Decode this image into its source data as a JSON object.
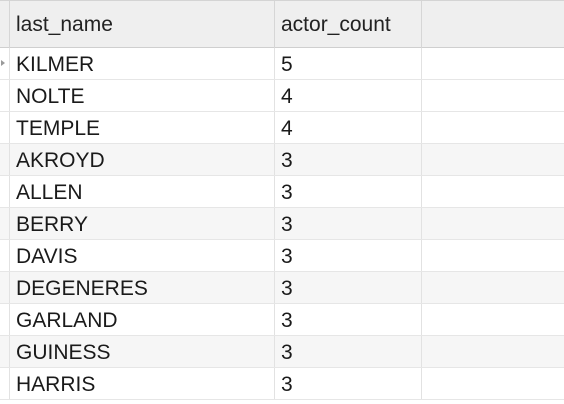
{
  "columns": {
    "last_name": "last_name",
    "actor_count": "actor_count"
  },
  "rows": [
    {
      "last_name": "KILMER",
      "actor_count": "5"
    },
    {
      "last_name": "NOLTE",
      "actor_count": "4"
    },
    {
      "last_name": "TEMPLE",
      "actor_count": "4"
    },
    {
      "last_name": "AKROYD",
      "actor_count": "3"
    },
    {
      "last_name": "ALLEN",
      "actor_count": "3"
    },
    {
      "last_name": "BERRY",
      "actor_count": "3"
    },
    {
      "last_name": "DAVIS",
      "actor_count": "3"
    },
    {
      "last_name": "DEGENERES",
      "actor_count": "3"
    },
    {
      "last_name": "GARLAND",
      "actor_count": "3"
    },
    {
      "last_name": "GUINESS",
      "actor_count": "3"
    },
    {
      "last_name": "HARRIS",
      "actor_count": "3"
    }
  ],
  "selected_row_indicator_icon": "row-pointer-icon"
}
